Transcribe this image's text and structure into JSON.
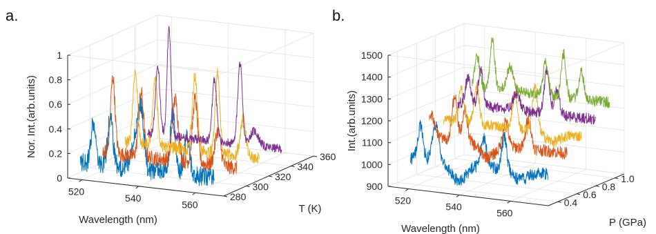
{
  "panels": [
    {
      "label": "a."
    },
    {
      "label": "b."
    }
  ],
  "chart_data": [
    {
      "type": "line",
      "panel": "a.",
      "projection": "3d-waterfall",
      "xlabel": "Wavelength (nm)",
      "ylabel": "T (K)",
      "zlabel": "Nor. Int.(arb.units)",
      "xlim": [
        515,
        570
      ],
      "ylim": [
        280,
        360
      ],
      "zlim": [
        0,
        1
      ],
      "xticks": [
        520,
        540,
        560
      ],
      "yticks": [
        280,
        300,
        320,
        340,
        360
      ],
      "zticks": [
        0,
        0.2,
        0.4,
        0.6,
        0.8,
        1
      ],
      "zticklabels": [
        "0",
        "0.2",
        "0.4",
        "0.6",
        "0.8",
        "1"
      ],
      "grid": true,
      "colors": [
        "#0072BD",
        "#D95319",
        "#EDB120",
        "#7E2F8E"
      ],
      "series": [
        {
          "y": 280,
          "color": "#0072BD",
          "base": 0.14,
          "noise": 0.08,
          "peaks": [
            {
              "x": 524,
              "h": 0.33,
              "w": 0.8
            },
            {
              "x": 530,
              "h": 0.4,
              "w": 0.9
            },
            {
              "x": 539,
              "h": 0.3,
              "w": 1.3
            },
            {
              "x": 541,
              "h": 0.42,
              "w": 0.9
            },
            {
              "x": 552,
              "h": 0.48,
              "w": 0.9
            },
            {
              "x": 557,
              "h": 0.3,
              "w": 1.0
            }
          ]
        },
        {
          "y": 300,
          "color": "#D95319",
          "base": 0.14,
          "noise": 0.06,
          "peaks": [
            {
              "x": 523,
              "h": 0.62,
              "w": 0.8
            },
            {
              "x": 533,
              "h": 0.52,
              "w": 0.9
            },
            {
              "x": 545,
              "h": 0.5,
              "w": 1.0
            },
            {
              "x": 552,
              "h": 0.52,
              "w": 0.9
            },
            {
              "x": 560,
              "h": 0.28,
              "w": 1.0
            }
          ]
        },
        {
          "y": 320,
          "color": "#EDB120",
          "base": 0.14,
          "noise": 0.05,
          "peaks": [
            {
              "x": 523,
              "h": 0.6,
              "w": 0.8
            },
            {
              "x": 530,
              "h": 0.55,
              "w": 0.8
            },
            {
              "x": 544,
              "h": 0.6,
              "w": 0.9
            },
            {
              "x": 552,
              "h": 0.64,
              "w": 0.8
            },
            {
              "x": 561,
              "h": 0.3,
              "w": 1.0
            }
          ]
        },
        {
          "y": 340,
          "color": "#7E2F8E",
          "base": 0.13,
          "noise": 0.035,
          "peaks": [
            {
              "x": 523,
              "h": 0.55,
              "w": 0.8
            },
            {
              "x": 527,
              "h": 0.87,
              "w": 0.7
            },
            {
              "x": 543,
              "h": 0.5,
              "w": 0.8
            },
            {
              "x": 552,
              "h": 0.66,
              "w": 0.8
            },
            {
              "x": 557,
              "h": 0.12,
              "w": 1.5
            }
          ]
        }
      ]
    },
    {
      "type": "line",
      "panel": "b.",
      "projection": "3d-waterfall",
      "xlabel": "Wavelength (nm)",
      "ylabel": "P (GPa)",
      "zlabel": "Int.(arb.units)",
      "xlim": [
        512,
        575
      ],
      "ylim": [
        0.3,
        1.1
      ],
      "zlim": [
        900,
        1500
      ],
      "xticks": [
        520,
        540,
        560
      ],
      "yticks": [
        0.4,
        0.6,
        0.8,
        1.0
      ],
      "yticklabels": [
        "0.4",
        "0.6",
        "0.8",
        "1.0"
      ],
      "zticks": [
        900,
        1000,
        1100,
        1200,
        1300,
        1400,
        1500
      ],
      "grid": true,
      "colors": [
        "#0072BD",
        "#D95319",
        "#EDB120",
        "#7E2F8E",
        "#77AC30"
      ],
      "series": [
        {
          "y": 0.4,
          "color": "#0072BD",
          "base": 1020,
          "noise": 28,
          "peaks": [
            {
              "x": 521,
              "h": 150,
              "w": 1.0
            },
            {
              "x": 527,
              "h": 170,
              "w": 1.2
            },
            {
              "x": 536,
              "h": -80,
              "w": 3.0
            },
            {
              "x": 546,
              "h": 130,
              "w": 1.0
            },
            {
              "x": 554,
              "h": 150,
              "w": 1.0
            },
            {
              "x": 560,
              "h": -40,
              "w": 3.0
            }
          ]
        },
        {
          "y": 0.6,
          "color": "#D95319",
          "base": 1080,
          "noise": 28,
          "peaks": [
            {
              "x": 518,
              "h": 100,
              "w": 1.2
            },
            {
              "x": 527,
              "h": 200,
              "w": 1.0
            },
            {
              "x": 531,
              "h": 140,
              "w": 1.0
            },
            {
              "x": 540,
              "h": -60,
              "w": 3.0
            },
            {
              "x": 547,
              "h": 120,
              "w": 1.0
            },
            {
              "x": 556,
              "h": 140,
              "w": 1.0
            }
          ]
        },
        {
          "y": 0.75,
          "color": "#EDB120",
          "base": 1130,
          "noise": 25,
          "peaks": [
            {
              "x": 524,
              "h": 150,
              "w": 1.0
            },
            {
              "x": 530,
              "h": 170,
              "w": 1.0
            },
            {
              "x": 545,
              "h": 150,
              "w": 1.0
            },
            {
              "x": 553,
              "h": 200,
              "w": 1.0
            },
            {
              "x": 560,
              "h": -40,
              "w": 3.0
            }
          ]
        },
        {
          "y": 0.9,
          "color": "#7E2F8E",
          "base": 1180,
          "noise": 25,
          "peaks": [
            {
              "x": 521,
              "h": 120,
              "w": 1.0
            },
            {
              "x": 526,
              "h": 160,
              "w": 1.0
            },
            {
              "x": 540,
              "h": 80,
              "w": 1.2
            },
            {
              "x": 552,
              "h": 200,
              "w": 1.0
            },
            {
              "x": 556,
              "h": 120,
              "w": 1.0
            }
          ]
        },
        {
          "y": 1.05,
          "color": "#77AC30",
          "base": 1230,
          "noise": 25,
          "peaks": [
            {
              "x": 519,
              "h": 140,
              "w": 1.0
            },
            {
              "x": 525,
              "h": 230,
              "w": 0.9
            },
            {
              "x": 532,
              "h": 110,
              "w": 1.2
            },
            {
              "x": 546,
              "h": 150,
              "w": 1.0
            },
            {
              "x": 553,
              "h": 200,
              "w": 0.9
            },
            {
              "x": 560,
              "h": 120,
              "w": 1.0
            }
          ]
        }
      ]
    }
  ]
}
